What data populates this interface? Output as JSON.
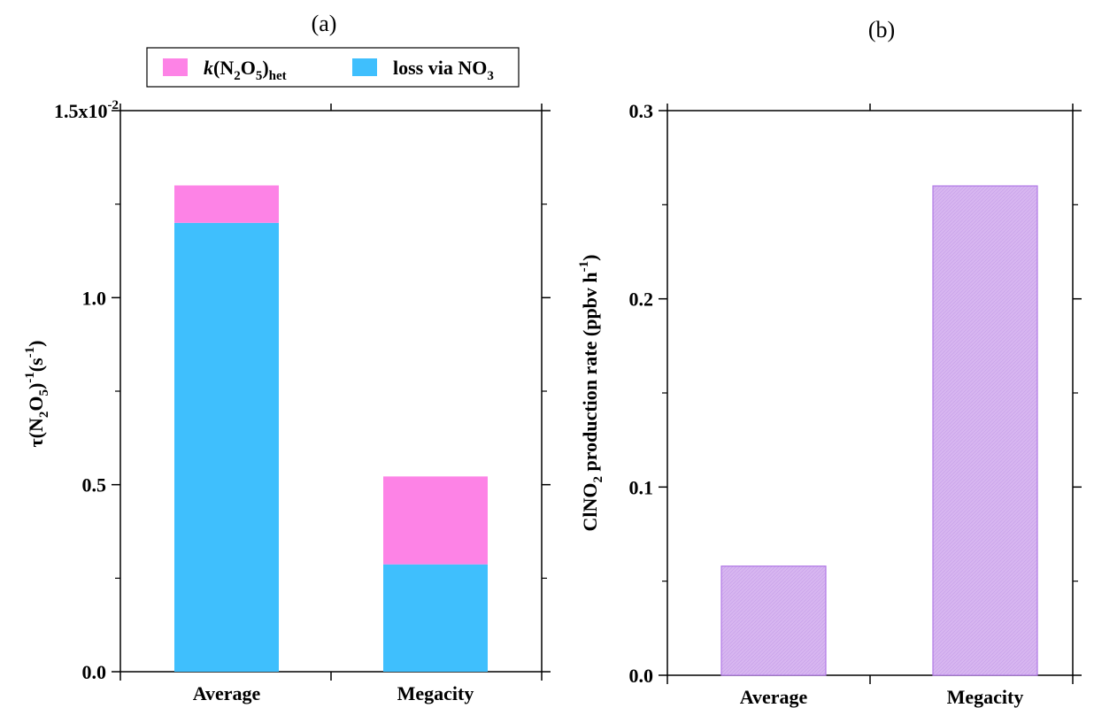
{
  "figure": {
    "panel_a_label": "(a)",
    "panel_b_label": "(b)"
  },
  "chart_data": [
    {
      "panel": "(a)",
      "type": "bar",
      "stacked": true,
      "categories": [
        "Average",
        "Megacity"
      ],
      "series": [
        {
          "name": "loss via NO3",
          "values": [
            0.012,
            0.00287
          ],
          "color": "#3fbffd"
        },
        {
          "name": "k(N2O5)het",
          "values": [
            0.001,
            0.00235
          ],
          "color": "#fd83e6"
        }
      ],
      "ylim": [
        0,
        0.015
      ],
      "yticks": [
        0,
        0.005,
        0.01,
        0.015
      ],
      "ytick_labels": [
        "0.0",
        "0.5",
        "1.0",
        "1.5x10"
      ],
      "ytick_exponent": "-2",
      "ylabel": {
        "main": "τ(N",
        "sub1": "2",
        "mid": "O",
        "sub2": "5",
        "close": ")",
        "sup": "-1",
        "unit": "(s",
        "unit_sup": "-1",
        "unit_close": ")"
      },
      "legend": {
        "position": "top",
        "entries": [
          {
            "k": "k",
            "rest": "(N",
            "s1": "2",
            "m": "O",
            "s2": "5",
            "c": ")",
            "s3": "het"
          },
          {
            "main": "loss via NO",
            "sub": "3"
          }
        ]
      },
      "grid": false
    },
    {
      "panel": "(b)",
      "type": "bar",
      "categories": [
        "Average",
        "Megacity"
      ],
      "values": [
        0.058,
        0.26
      ],
      "color": "#d7b6f0",
      "edge_color": "#b079e6",
      "ylim": [
        0,
        0.3
      ],
      "yticks": [
        0,
        0.1,
        0.2,
        0.3
      ],
      "ytick_labels": [
        "0.0",
        "0.1",
        "0.2",
        "0.3"
      ],
      "ylabel": {
        "main": "ClNO",
        "sub": "2",
        "rest": " production rate (ppbv h",
        "sup": "-1",
        "close": ")"
      },
      "grid": false
    }
  ]
}
